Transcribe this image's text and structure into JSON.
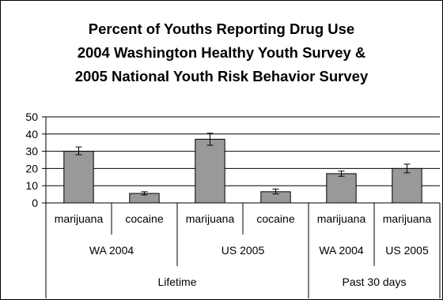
{
  "title_lines": [
    "Percent of Youths Reporting Drug Use",
    "2004 Washington Healthy Youth Survey &",
    "2005 National Youth Risk Behavior Survey"
  ],
  "chart_data": {
    "type": "bar",
    "title": "Percent of Youths Reporting Drug Use 2004 Washington Healthy Youth Survey & 2005 National Youth Risk Behavior Survey",
    "xlabel": "",
    "ylabel": "",
    "ylim": [
      0,
      50
    ],
    "yticks": [
      0,
      10,
      20,
      30,
      40,
      50
    ],
    "grid": true,
    "bar_color": "#999999",
    "categories": [
      "marijuana",
      "cocaine",
      "marijuana",
      "cocaine",
      "marijuana",
      "marijuana"
    ],
    "values": [
      30,
      5.5,
      37,
      6.5,
      17,
      20
    ],
    "error_low": [
      28,
      4.6,
      33.5,
      5.2,
      15.5,
      17.5
    ],
    "error_high": [
      32.5,
      6.5,
      40.5,
      8,
      18.5,
      22.5
    ],
    "survey_groups": [
      {
        "label": "WA 2004",
        "span": 2
      },
      {
        "label": "US 2005",
        "span": 2
      },
      {
        "label": "WA 2004",
        "span": 1
      },
      {
        "label": "US 2005",
        "span": 1
      }
    ],
    "period_groups": [
      {
        "label": "Lifetime",
        "span": 4
      },
      {
        "label": "Past 30 days",
        "span": 2
      }
    ]
  }
}
